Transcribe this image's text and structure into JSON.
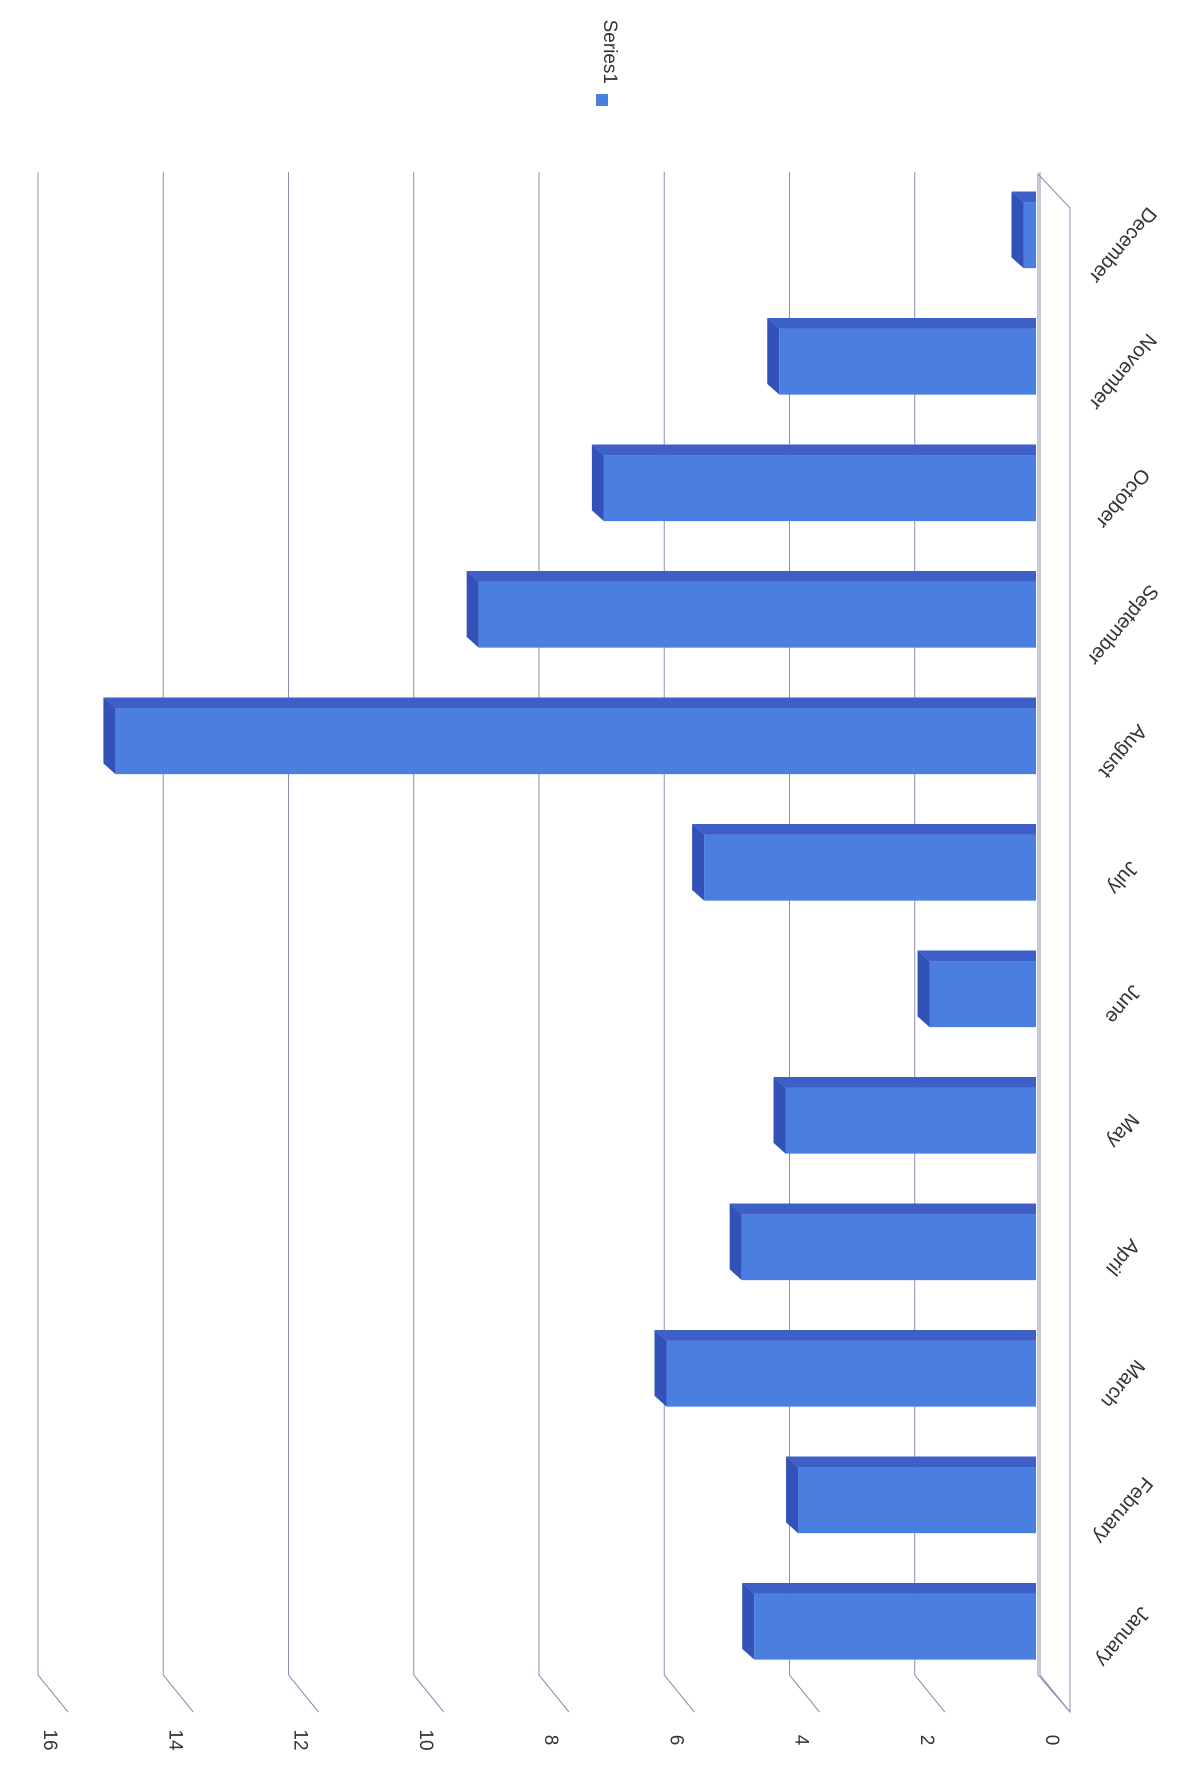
{
  "chart_data": {
    "type": "bar",
    "orientation": "horizontal-3d",
    "rotation": "page rotated 90° clockwise",
    "categories": [
      "January",
      "February",
      "March",
      "April",
      "May",
      "June",
      "July",
      "August",
      "September",
      "October",
      "November",
      "December"
    ],
    "series": [
      {
        "name": "Series1",
        "color": "#4a7fe0",
        "values": [
          4.5,
          3.8,
          5.9,
          4.7,
          4.0,
          1.7,
          5.3,
          14.7,
          8.9,
          6.9,
          4.1,
          0.2
        ]
      }
    ],
    "ticks": [
      "0",
      "2",
      "4",
      "6",
      "8",
      "10",
      "12",
      "14",
      "16"
    ],
    "ylim": [
      0,
      16
    ],
    "grid": true,
    "legend": "top"
  }
}
